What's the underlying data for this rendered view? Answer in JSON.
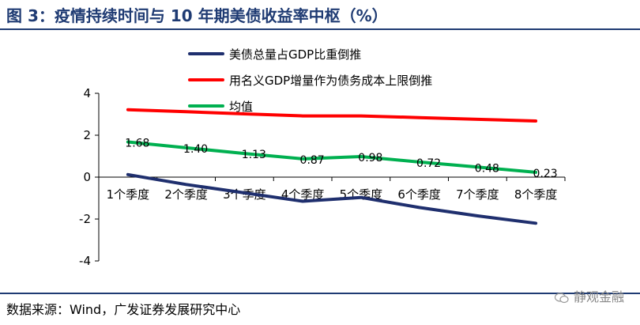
{
  "figure": {
    "title": "图 3：疫情持续时间与 10 年期美债收益率中枢（%）",
    "source": "数据来源：Wind，广发证券发展研究中心",
    "watermark": "静观金融"
  },
  "chart_data": {
    "type": "line",
    "title": "图 3：疫情持续时间与 10 年期美债收益率中枢（%）",
    "xlabel": "",
    "ylabel": "",
    "categories": [
      "1个季度",
      "2个季度",
      "3个季度",
      "4个季度",
      "5个季度",
      "6个季度",
      "7个季度",
      "8个季度"
    ],
    "ylim": [
      -4,
      4
    ],
    "yticks": [
      -4,
      -2,
      0,
      2,
      4
    ],
    "grid": false,
    "legend_position": "top-center",
    "series": [
      {
        "name": "美债总量占GDP比重倒推",
        "color": "#1F2F6E",
        "values": [
          0.12,
          -0.35,
          -0.75,
          -1.15,
          -0.97,
          -1.45,
          -1.85,
          -2.2
        ]
      },
      {
        "name": "用名义GDP增量作为债务成本上限倒推",
        "color": "#FF0000",
        "values": [
          3.22,
          3.12,
          3.02,
          2.92,
          2.92,
          2.84,
          2.76,
          2.68
        ]
      },
      {
        "name": "均值",
        "color": "#00B050",
        "values": [
          1.68,
          1.4,
          1.13,
          0.87,
          0.98,
          0.72,
          0.48,
          0.23
        ],
        "data_labels": [
          "1.68",
          "1.40",
          "1.13",
          "0.87",
          "0.98",
          "0.72",
          "0.48",
          "0.23"
        ]
      }
    ]
  }
}
